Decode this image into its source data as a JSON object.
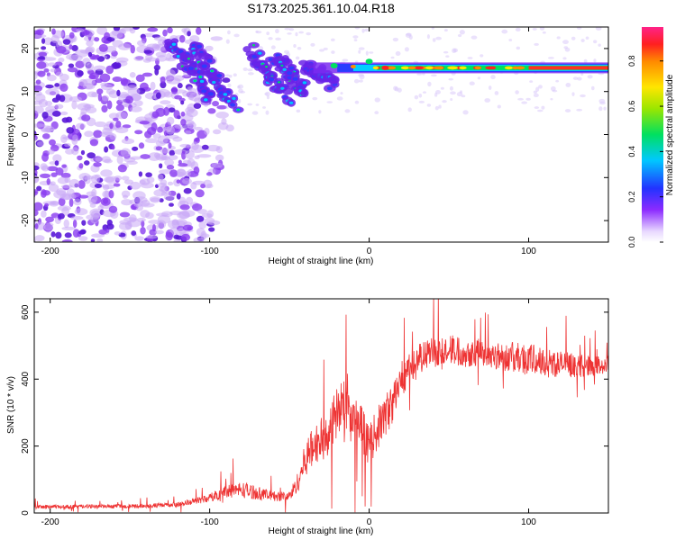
{
  "figure": {
    "title": "S173.2025.361.10.04.R18"
  },
  "chart_data": [
    {
      "type": "heatmap",
      "xlabel": "Height of straight line (km)",
      "ylabel": "Frequency (Hz)",
      "xlim": [
        -210,
        150
      ],
      "ylim": [
        -25,
        25
      ],
      "xticks": [
        -200,
        -100,
        0,
        100
      ],
      "yticks": [
        -20,
        -10,
        0,
        10,
        20
      ],
      "colorbar": {
        "label": "Normalized spectral amplitude",
        "range": [
          0.0,
          0.95
        ],
        "ticks": [
          0.0,
          0.2,
          0.4,
          0.6,
          0.8
        ],
        "tick_labels": [
          "0.0",
          "0.2",
          "0.4",
          "0.6",
          "0.8"
        ]
      },
      "description_series": [
        {
          "name": "noise-scatter",
          "x_range": [
            -210,
            -90
          ],
          "y_range": [
            -25,
            25
          ]
        },
        {
          "name": "dispersed-signal",
          "x_range": [
            -125,
            -20
          ],
          "y_range": [
            5,
            22
          ]
        },
        {
          "name": "narrowband-line",
          "x_range": [
            0,
            150
          ],
          "frequency": 15.5
        }
      ]
    },
    {
      "type": "line",
      "xlabel": "Height of straight line (km)",
      "ylabel": "SNR (10 * v/v)",
      "xlim": [
        -210,
        150
      ],
      "ylim": [
        0,
        640
      ],
      "xticks": [
        -200,
        -100,
        0,
        100
      ],
      "yticks": [
        0,
        200,
        400,
        600
      ],
      "color": "#ee3333",
      "envelope": {
        "x": [
          -210,
          -150,
          -120,
          -100,
          -90,
          -80,
          -70,
          -60,
          -50,
          -45,
          -40,
          -35,
          -30,
          -25,
          -20,
          -15,
          -10,
          -5,
          0,
          5,
          10,
          15,
          20,
          30,
          40,
          50,
          60,
          70,
          80,
          90,
          100,
          110,
          120,
          130,
          140,
          150
        ],
        "mean": [
          18,
          20,
          25,
          45,
          65,
          70,
          60,
          50,
          50,
          90,
          160,
          200,
          220,
          250,
          300,
          320,
          270,
          260,
          200,
          250,
          290,
          330,
          400,
          460,
          480,
          490,
          480,
          480,
          470,
          465,
          460,
          450,
          445,
          440,
          440,
          440
        ],
        "amp": [
          12,
          12,
          14,
          25,
          40,
          50,
          40,
          30,
          30,
          60,
          100,
          120,
          130,
          150,
          160,
          170,
          150,
          140,
          120,
          130,
          130,
          120,
          110,
          90,
          90,
          90,
          90,
          80,
          80,
          90,
          100,
          90,
          80,
          70,
          60,
          60
        ]
      }
    }
  ]
}
